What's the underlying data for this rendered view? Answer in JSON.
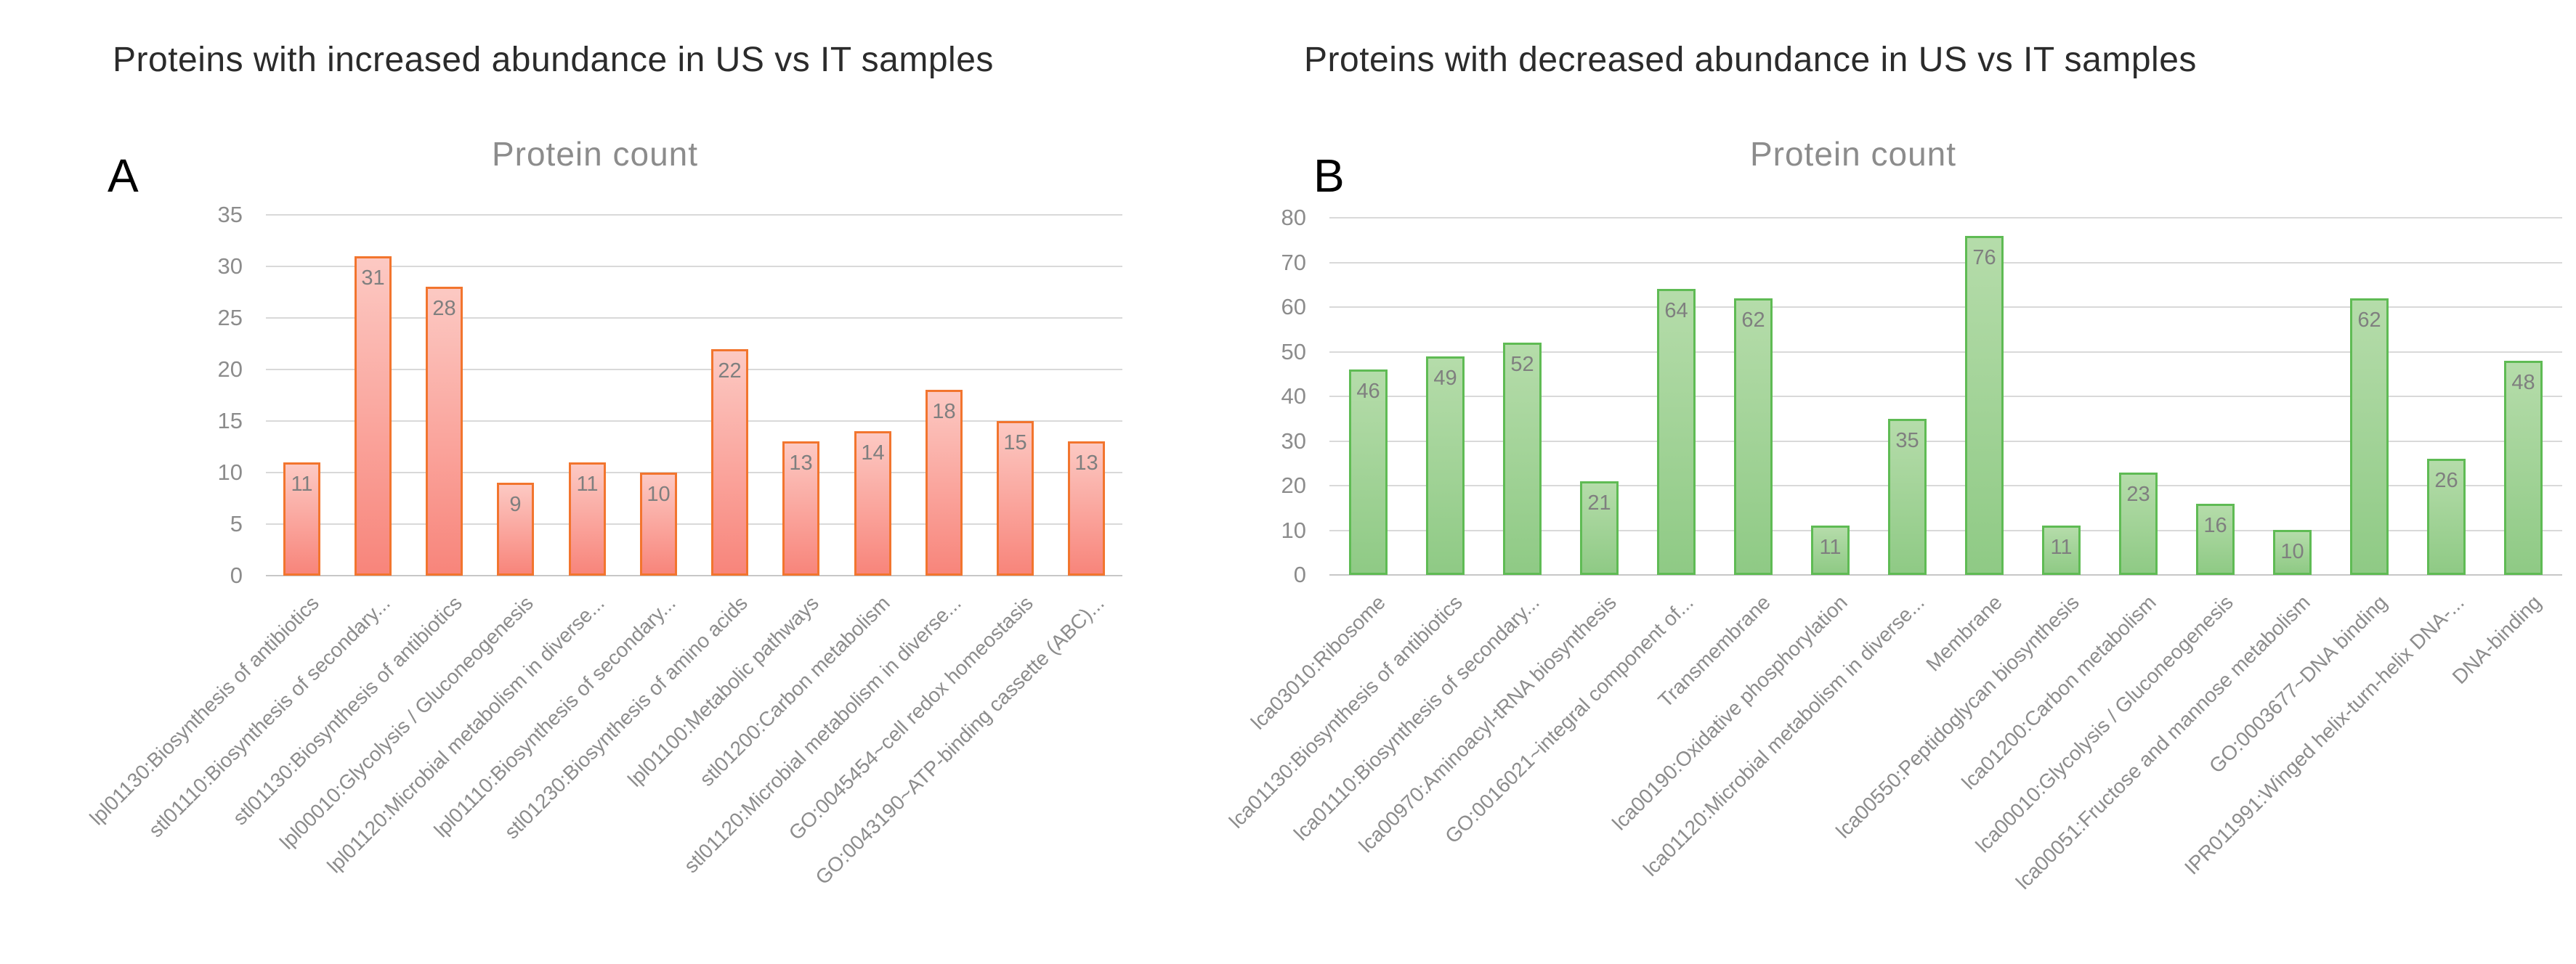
{
  "page": {
    "background": "#ffffff"
  },
  "theme": {
    "grid_color": "#d9d9d9",
    "zero_line_color": "#c7c7c7",
    "axis_text_color": "#8c8c8c",
    "value_label_color": "#7f7f7f",
    "heading_color": "#2b2b2b",
    "chart_title_color": "#8c8c8c",
    "panel_letter_color": "#000000"
  },
  "chart_data": [
    {
      "type": "bar",
      "panel_label": "A",
      "heading": "Proteins with increased abundance in US vs IT samples",
      "title": "Protein count",
      "xlabel": "",
      "ylabel": "",
      "ylim": [
        0,
        35
      ],
      "ytick_step": 5,
      "grid": "on",
      "legend": "none",
      "categories": [
        "lpl01130:Biosynthesis of antibiotics",
        "stl01110:Biosynthesis of secondary...",
        "stl01130:Biosynthesis of antibiotics",
        "lpl00010:Glycolysis / Gluconeogenesis",
        "lpl01120:Microbial metabolism in diverse...",
        "lpl01110:Biosynthesis of secondary...",
        "stl01230:Biosynthesis of amino acids",
        "lpl01100:Metabolic pathways",
        "stl01200:Carbon metabolism",
        "stl01120:Microbial metabolism in diverse...",
        "GO:0045454~cell redox homeostasis",
        "GO:0043190~ATP-binding cassette (ABC)..."
      ],
      "values": [
        11,
        31,
        28,
        9,
        11,
        10,
        22,
        13,
        14,
        18,
        15,
        13
      ],
      "colors": {
        "bar_border": "#f2752e",
        "bar_fill_top": "#fcc9c3",
        "bar_fill_bottom": "#f8857b"
      }
    },
    {
      "type": "bar",
      "panel_label": "B",
      "heading": "Proteins with decreased abundance in US vs IT samples",
      "title": "Protein count",
      "xlabel": "",
      "ylabel": "",
      "ylim": [
        0,
        80
      ],
      "ytick_step": 10,
      "grid": "on",
      "legend": "none",
      "categories": [
        "lca03010:Ribosome",
        "lca01130:Biosynthesis of antibiotics",
        "lca01110:Biosynthesis of secondary...",
        "lca00970:Aminoacyl-tRNA biosynthesis",
        "GO:0016021~integral component of...",
        "Transmembrane",
        "lca00190:Oxidative phosphorylation",
        "lca01120:Microbial metabolism in diverse...",
        "Membrane",
        "lca00550:Peptidoglycan biosynthesis",
        "lca01200:Carbon metabolism",
        "lca00010:Glycolysis / Gluconeogenesis",
        "lca00051:Fructose and mannose metabolism",
        "GO:0003677~DNA binding",
        "IPR011991:Winged helix-turn-helix DNA-...",
        "DNA-binding"
      ],
      "values": [
        46,
        49,
        52,
        21,
        64,
        62,
        11,
        35,
        76,
        11,
        23,
        16,
        10,
        62,
        26,
        48
      ],
      "colors": {
        "bar_border": "#5fbb54",
        "bar_fill_top": "#b5dcaa",
        "bar_fill_bottom": "#8fca85"
      }
    }
  ]
}
